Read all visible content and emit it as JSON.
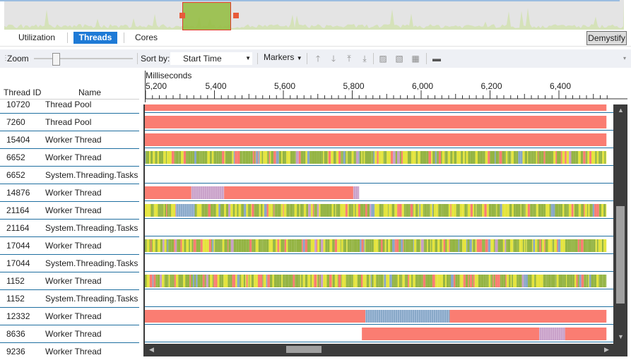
{
  "tabs": [
    {
      "label": "Utilization",
      "active": false
    },
    {
      "label": "Threads",
      "active": true
    },
    {
      "label": "Cores",
      "active": false
    }
  ],
  "demystify_label": "Demystify",
  "toolbar": {
    "zoom_label": "Zoom",
    "zoom_level": 0.22,
    "sort_label": "Sort by:",
    "sort_value": "Start Time",
    "markers_label": "Markers",
    "icons": [
      "move-up-icon",
      "move-down-icon",
      "move-to-top-icon",
      "move-to-bottom-icon",
      "hide-selected-icon",
      "hide-unselected-icon",
      "show-all-icon",
      "export-icon"
    ]
  },
  "table": {
    "columns": [
      "Thread ID",
      "Name"
    ],
    "rows": [
      {
        "id": "10720",
        "name": "Thread Pool"
      },
      {
        "id": "7260",
        "name": "Thread Pool"
      },
      {
        "id": "15404",
        "name": "Worker Thread"
      },
      {
        "id": "6652",
        "name": "Worker Thread"
      },
      {
        "id": "6652",
        "name": "System.Threading.Tasks"
      },
      {
        "id": "14876",
        "name": "Worker Thread"
      },
      {
        "id": "21164",
        "name": "Worker Thread"
      },
      {
        "id": "21164",
        "name": "System.Threading.Tasks"
      },
      {
        "id": "17044",
        "name": "Worker Thread"
      },
      {
        "id": "17044",
        "name": "System.Threading.Tasks"
      },
      {
        "id": "1152",
        "name": "Worker Thread"
      },
      {
        "id": "1152",
        "name": "System.Threading.Tasks"
      },
      {
        "id": "12332",
        "name": "Worker Thread"
      },
      {
        "id": "8636",
        "name": "Worker Thread"
      },
      {
        "id": "9236",
        "name": "Worker Thread"
      }
    ]
  },
  "timeline": {
    "unit_label": "Milliseconds",
    "axis_start": 5200,
    "axis_end": 6540,
    "ticks": [
      "5,200",
      "5,400",
      "5,600",
      "5,800",
      "6,000",
      "6,200",
      "6,400"
    ],
    "tick_values": [
      5200,
      5400,
      5600,
      5800,
      6000,
      6200,
      6400
    ],
    "colors": {
      "sync": "#fa7d72",
      "exec": "#94b443",
      "io": "#e4e43c",
      "sleep": "#88a8c8",
      "preempt": "#c8a0c8"
    },
    "lanes": [
      {
        "segments": [
          [
            5200,
            6540,
            "sync"
          ]
        ]
      },
      {
        "segments": [
          [
            5200,
            6540,
            "sync"
          ]
        ]
      },
      {
        "segments": [
          [
            5200,
            6540,
            "sync"
          ]
        ]
      },
      {
        "segments": [
          [
            5200,
            6540,
            "mixed"
          ]
        ]
      },
      {
        "segments": []
      },
      {
        "segments": [
          [
            5200,
            5335,
            "sync"
          ],
          [
            5335,
            5430,
            "preempt"
          ],
          [
            5430,
            5805,
            "sync"
          ],
          [
            5805,
            5822,
            "preempt"
          ]
        ]
      },
      {
        "segments": [
          [
            5200,
            5290,
            "mixed"
          ],
          [
            5290,
            5345,
            "sleep"
          ],
          [
            5345,
            5400,
            "mixed"
          ],
          [
            5400,
            6540,
            "mixed"
          ]
        ]
      },
      {
        "segments": []
      },
      {
        "segments": [
          [
            5200,
            6540,
            "mixed"
          ]
        ]
      },
      {
        "segments": []
      },
      {
        "segments": [
          [
            5200,
            6540,
            "mixed"
          ]
        ]
      },
      {
        "segments": []
      },
      {
        "segments": [
          [
            5200,
            5840,
            "sync"
          ],
          [
            5840,
            6085,
            "sleep"
          ],
          [
            6085,
            6540,
            "sync"
          ]
        ]
      },
      {
        "segments": [
          [
            5830,
            6345,
            "sync"
          ],
          [
            6345,
            6420,
            "preempt"
          ],
          [
            6420,
            6540,
            "sync"
          ]
        ]
      },
      {
        "segments": []
      }
    ]
  }
}
